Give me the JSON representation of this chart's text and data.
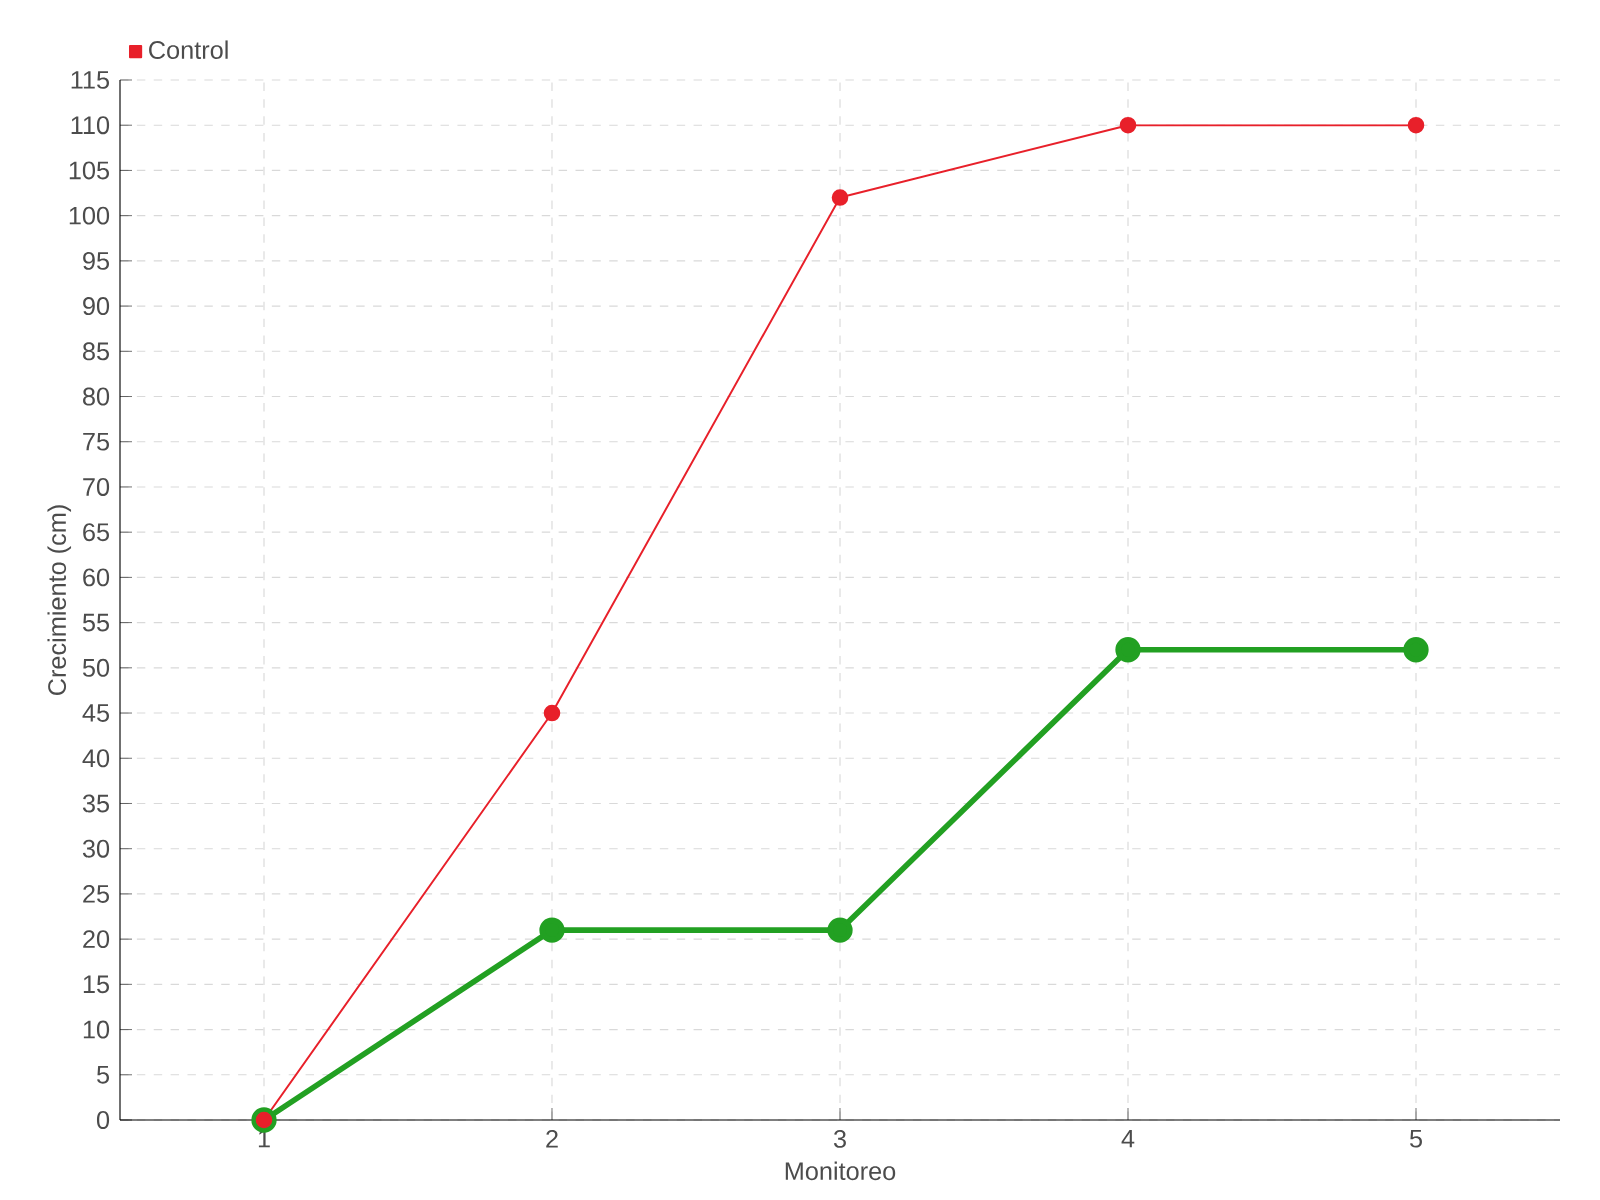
{
  "chart_data": {
    "type": "line",
    "xlabel": "Monitoreo",
    "ylabel": "Crecimiento (cm)",
    "x": [
      1,
      2,
      3,
      4,
      5
    ],
    "series": [
      {
        "color": "#22a022",
        "values": [
          0,
          21,
          21,
          52,
          52
        ]
      },
      {
        "name": "Control",
        "color": "#e8202a",
        "values": [
          0,
          45,
          102,
          110,
          110
        ]
      }
    ],
    "xlim": [
      0.5,
      5.5
    ],
    "xticks": [
      1,
      2,
      3,
      4,
      5
    ],
    "ylim": [
      0,
      115
    ],
    "yticks": [
      0,
      5,
      10,
      15,
      20,
      25,
      30,
      35,
      40,
      45,
      50,
      55,
      60,
      65,
      70,
      75,
      80,
      85,
      90,
      95,
      100,
      105,
      110,
      115
    ],
    "grid": true,
    "legend": "top left",
    "marker": "circle",
    "line_style": "solid"
  }
}
